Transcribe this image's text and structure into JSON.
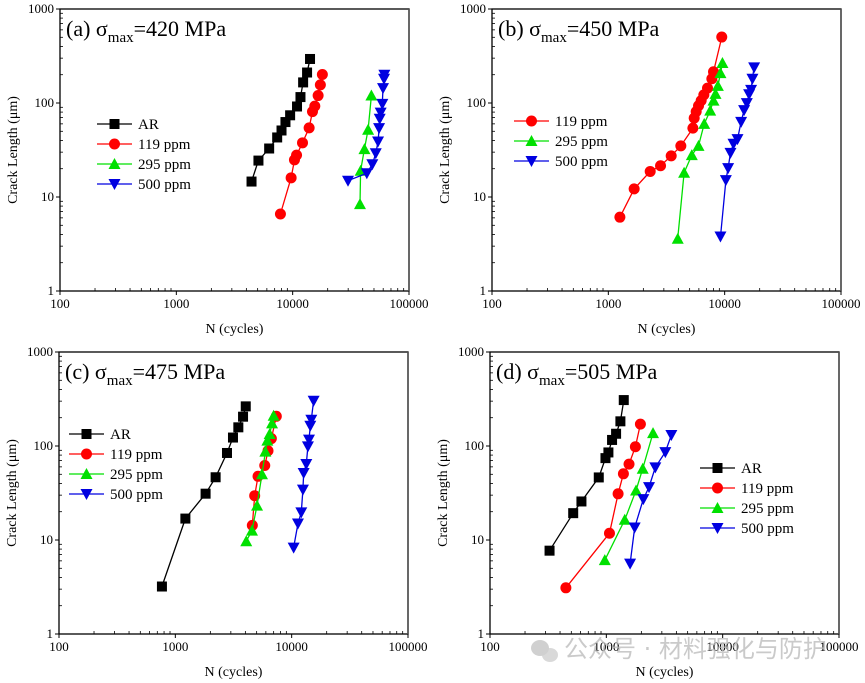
{
  "chart_data": [
    {
      "type": "line",
      "scale": {
        "x": "log",
        "y": "log"
      },
      "title": "(a)  σmax=420 MPa",
      "title_parts": {
        "label": "(a)",
        "symbol": "σ",
        "subscript": "max",
        "value": "=420 MPa"
      },
      "xlabel": "N (cycles)",
      "ylabel": "Crack Length (μm)",
      "xlim": [
        100,
        100000
      ],
      "ylim": [
        1,
        1000
      ],
      "xticks": [
        "100",
        "1000",
        "10000",
        "100000"
      ],
      "yticks": [
        "1",
        "10",
        "100",
        "1000"
      ],
      "grid": false,
      "legend_position": "center-left",
      "series": [
        {
          "name": "AR",
          "color": "#000000",
          "marker": "square",
          "x": [
            4430,
            5080,
            6280,
            7360,
            8020,
            8670,
            9510,
            10900,
            11670,
            12300,
            13300,
            14100
          ],
          "y": [
            14.6,
            24.4,
            32.8,
            43,
            51,
            62.7,
            74,
            91.8,
            115.6,
            165.6,
            211,
            294
          ]
        },
        {
          "name": "119 ppm",
          "color": "#ff0000",
          "marker": "circle",
          "x": [
            7850,
            9700,
            10360,
            10800,
            12150,
            13850,
            14800,
            15500,
            16550,
            17300,
            18000
          ],
          "y": [
            6.6,
            16,
            24.8,
            27.9,
            37.7,
            54.4,
            81,
            92.6,
            120,
            156,
            201
          ]
        },
        {
          "name": "295 ppm",
          "color": "#00e000",
          "marker": "triangle-up",
          "x": [
            37900,
            38400,
            41400,
            44500,
            47500
          ],
          "y": [
            8.4,
            19,
            32.3,
            52,
            120
          ]
        },
        {
          "name": "500 ppm",
          "color": "#0000e0",
          "marker": "triangle-down",
          "x": [
            29900,
            43400,
            48400,
            51800,
            54200,
            55300,
            56000,
            57100,
            59000,
            59800,
            61000,
            61400
          ],
          "y": [
            14.9,
            17.9,
            22.3,
            29.2,
            39,
            54,
            68,
            79,
            98,
            144,
            181,
            200
          ]
        }
      ]
    },
    {
      "type": "line",
      "scale": {
        "x": "log",
        "y": "log"
      },
      "title": "(b) σmax=450 MPa",
      "title_parts": {
        "label": "(b)",
        "symbol": "σ",
        "subscript": "max",
        "value": "=450 MPa"
      },
      "xlabel": "N (cycles)",
      "ylabel": "Crack Length (μm)",
      "xlim": [
        100,
        100000
      ],
      "ylim": [
        1,
        1000
      ],
      "xticks": [
        "100",
        "1000",
        "10000",
        "100000"
      ],
      "yticks": [
        "1",
        "10",
        "100",
        "1000"
      ],
      "grid": false,
      "legend_position": "center-left",
      "series": [
        {
          "name": "119 ppm",
          "color": "#ff0000",
          "marker": "circle",
          "x": [
            1257,
            1667,
            2290,
            2810,
            3470,
            4200,
            5330,
            5470,
            5690,
            5960,
            6280,
            6620,
            7120,
            7760,
            8020,
            9440
          ],
          "y": [
            6.1,
            12.2,
            18.7,
            21.5,
            27.4,
            35,
            54,
            69,
            81,
            93.5,
            106,
            122,
            144,
            181,
            215,
            503
          ]
        },
        {
          "name": "295 ppm",
          "color": "#00e000",
          "marker": "triangle-up",
          "x": [
            3950,
            4480,
            5220,
            5960,
            6670,
            7510,
            8020,
            8340,
            8740,
            9200,
            9570
          ],
          "y": [
            3.6,
            18.1,
            27.9,
            35,
            60,
            83,
            106,
            125,
            152,
            208,
            266
          ]
        },
        {
          "name": "500 ppm",
          "color": "#0000e0",
          "marker": "triangle-down",
          "x": [
            9200,
            10240,
            10710,
            11220,
            11910,
            12890,
            13850,
            14690,
            15500,
            16220,
            16870,
            17330,
            17920
          ],
          "y": [
            3.8,
            15.1,
            20.3,
            29.5,
            36.8,
            41.3,
            63,
            84,
            99.7,
            124,
            138,
            181,
            239
          ]
        }
      ]
    },
    {
      "type": "line",
      "scale": {
        "x": "log",
        "y": "log"
      },
      "title": "(c) σmax=475 MPa",
      "title_parts": {
        "label": "(c)",
        "symbol": "σ",
        "subscript": "max",
        "value": "=475 MPa"
      },
      "xlabel": "N (cycles)",
      "ylabel": "Crack Length (μm)",
      "xlim": [
        100,
        100000
      ],
      "ylim": [
        1,
        1000
      ],
      "xticks": [
        "100",
        "1000",
        "10000",
        "100000"
      ],
      "yticks": [
        "1",
        "10",
        "100",
        "1000"
      ],
      "grid": false,
      "legend_position": "upper-left",
      "series": [
        {
          "name": "AR",
          "color": "#000000",
          "marker": "square",
          "x": [
            767,
            1220,
            1820,
            2220,
            2780,
            3130,
            3480,
            3820,
            4030
          ],
          "y": [
            3.2,
            16.9,
            31.1,
            46.5,
            84.3,
            123,
            158,
            205,
            264
          ]
        },
        {
          "name": "119 ppm",
          "color": "#ff0000",
          "marker": "circle",
          "x": [
            4590,
            4810,
            5140,
            5870,
            6260,
            6690,
            7380
          ],
          "y": [
            14.3,
            29.6,
            47.6,
            62,
            89,
            120,
            207
          ]
        },
        {
          "name": "295 ppm",
          "color": "#00e000",
          "marker": "triangle-up",
          "x": [
            4070,
            4560,
            5040,
            5560,
            5940,
            6180,
            6470,
            6780,
            7000
          ],
          "y": [
            9.7,
            12.6,
            23.2,
            50,
            87,
            114,
            134,
            174,
            210
          ]
        },
        {
          "name": "500 ppm",
          "color": "#0000e0",
          "marker": "triangle-down",
          "x": [
            10400,
            11330,
            12100,
            12500,
            12680,
            13360,
            13800,
            14090,
            14460,
            14750,
            15450
          ],
          "y": [
            8.3,
            15,
            19.7,
            34.3,
            51.6,
            64.4,
            99,
            117,
            164,
            190,
            303
          ]
        }
      ]
    },
    {
      "type": "line",
      "scale": {
        "x": "log",
        "y": "log"
      },
      "title": "(d) σmax=505 MPa",
      "title_parts": {
        "label": "(d)",
        "symbol": "σ",
        "subscript": "max",
        "value": "=505 MPa"
      },
      "xlabel": "N (cycles)",
      "ylabel": "Crack Length (μm)",
      "xlim": [
        100,
        100000
      ],
      "ylim": [
        1,
        1000
      ],
      "xticks": [
        "100",
        "1000",
        "10000",
        "100000"
      ],
      "yticks": [
        "1",
        "10",
        "100",
        "1000"
      ],
      "grid": false,
      "legend_position": "center-right",
      "series": [
        {
          "name": "AR",
          "color": "#000000",
          "marker": "square",
          "x": [
            325,
            519,
            611,
            861,
            983,
            1042,
            1120,
            1213,
            1321,
            1412
          ],
          "y": [
            7.7,
            19.3,
            25.7,
            46.3,
            74.3,
            85.4,
            116,
            135,
            183,
            308
          ]
        },
        {
          "name": "119 ppm",
          "color": "#ff0000",
          "marker": "circle",
          "x": [
            449,
            1064,
            1262,
            1402,
            1567,
            1777,
            1963
          ],
          "y": [
            3.1,
            11.8,
            31,
            50.6,
            64.1,
            98.1,
            171
          ]
        },
        {
          "name": "295 ppm",
          "color": "#00e000",
          "marker": "triangle-up",
          "x": [
            970,
            1440,
            1800,
            2055,
            2520
          ],
          "y": [
            6.1,
            16.4,
            33.6,
            57.3,
            137
          ]
        },
        {
          "name": "500 ppm",
          "color": "#0000e0",
          "marker": "triangle-down",
          "x": [
            1600,
            1753,
            2080,
            2328,
            2638,
            3214,
            3622
          ],
          "y": [
            5.6,
            13.6,
            27.2,
            36.5,
            59.2,
            86.1,
            131
          ]
        }
      ]
    }
  ],
  "watermark": {
    "text": "公众号 · 材料强化与防护",
    "icon": "wechat-icon"
  }
}
